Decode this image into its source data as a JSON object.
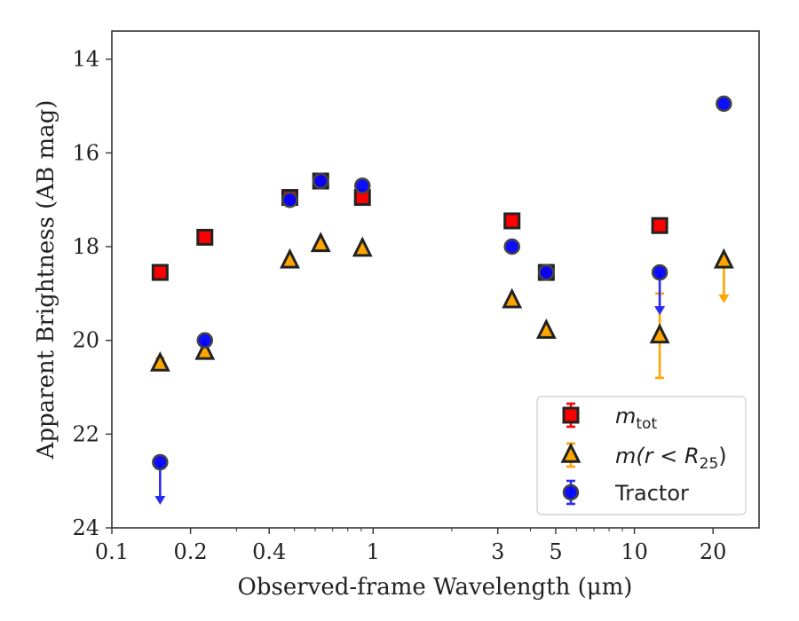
{
  "chart_data": {
    "type": "scatter",
    "xlabel": "Observed-frame Wavelength (μm)",
    "ylabel": "Apparent Brightness (AB mag)",
    "xscale": "log",
    "xlim": [
      0.1,
      30
    ],
    "ylim": [
      24,
      13.4
    ],
    "y_inverted": true,
    "grid": false,
    "legend_position": "lower-right",
    "x_ticks": [
      {
        "value": 0.1,
        "label": "0.1"
      },
      {
        "value": 0.2,
        "label": "0.2"
      },
      {
        "value": 0.4,
        "label": "0.4"
      },
      {
        "value": 1,
        "label": "1"
      },
      {
        "value": 3,
        "label": "3"
      },
      {
        "value": 5,
        "label": "5"
      },
      {
        "value": 10,
        "label": "10"
      },
      {
        "value": 20,
        "label": "20"
      }
    ],
    "y_ticks": [
      {
        "value": 14,
        "label": "14"
      },
      {
        "value": 16,
        "label": "16"
      },
      {
        "value": 18,
        "label": "18"
      },
      {
        "value": 20,
        "label": "20"
      },
      {
        "value": 22,
        "label": "22"
      },
      {
        "value": 24,
        "label": "24"
      }
    ],
    "series": [
      {
        "key": "mtot",
        "name": "m_tot",
        "legend_main": "m",
        "legend_sub": "tot",
        "marker": "square",
        "color": "#ff0000",
        "edge_color": "#222222",
        "errorbar_color": "#ff0000",
        "points": [
          {
            "x": 0.153,
            "y": 18.55
          },
          {
            "x": 0.227,
            "y": 17.8
          },
          {
            "x": 0.48,
            "y": 16.95
          },
          {
            "x": 0.63,
            "y": 16.6
          },
          {
            "x": 0.91,
            "y": 16.95
          },
          {
            "x": 3.4,
            "y": 17.45
          },
          {
            "x": 4.6,
            "y": 18.55
          },
          {
            "x": 12.5,
            "y": 17.55
          }
        ]
      },
      {
        "key": "mr25",
        "name": "m(r < R25)",
        "legend_text": "m(r < R",
        "legend_sub": "25",
        "legend_tail": ")",
        "marker": "triangle",
        "color": "#ffa500",
        "edge_color": "#222222",
        "errorbar_color": "#ffa500",
        "points": [
          {
            "x": 0.153,
            "y": 20.5,
            "yerr": 0.12
          },
          {
            "x": 0.227,
            "y": 20.25
          },
          {
            "x": 0.48,
            "y": 18.3
          },
          {
            "x": 0.63,
            "y": 17.95
          },
          {
            "x": 0.91,
            "y": 18.05
          },
          {
            "x": 3.4,
            "y": 19.15
          },
          {
            "x": 4.6,
            "y": 19.8
          },
          {
            "x": 12.5,
            "y": 19.9,
            "yerr": 0.9
          },
          {
            "x": 22.0,
            "y": 18.3,
            "upper_limit": true
          }
        ]
      },
      {
        "key": "tractor",
        "name": "Tractor",
        "legend_text": "Tractor",
        "marker": "circle",
        "color": "#0000ff",
        "edge_color": "#444444",
        "errorbar_color": "#2a2aee",
        "points": [
          {
            "x": 0.153,
            "y": 22.6,
            "upper_limit": true
          },
          {
            "x": 0.227,
            "y": 20.0
          },
          {
            "x": 0.48,
            "y": 17.0
          },
          {
            "x": 0.63,
            "y": 16.6
          },
          {
            "x": 0.91,
            "y": 16.7
          },
          {
            "x": 3.4,
            "y": 18.0
          },
          {
            "x": 4.6,
            "y": 18.55
          },
          {
            "x": 12.5,
            "y": 18.55,
            "upper_limit": true
          },
          {
            "x": 22.0,
            "y": 14.95
          }
        ]
      }
    ]
  }
}
